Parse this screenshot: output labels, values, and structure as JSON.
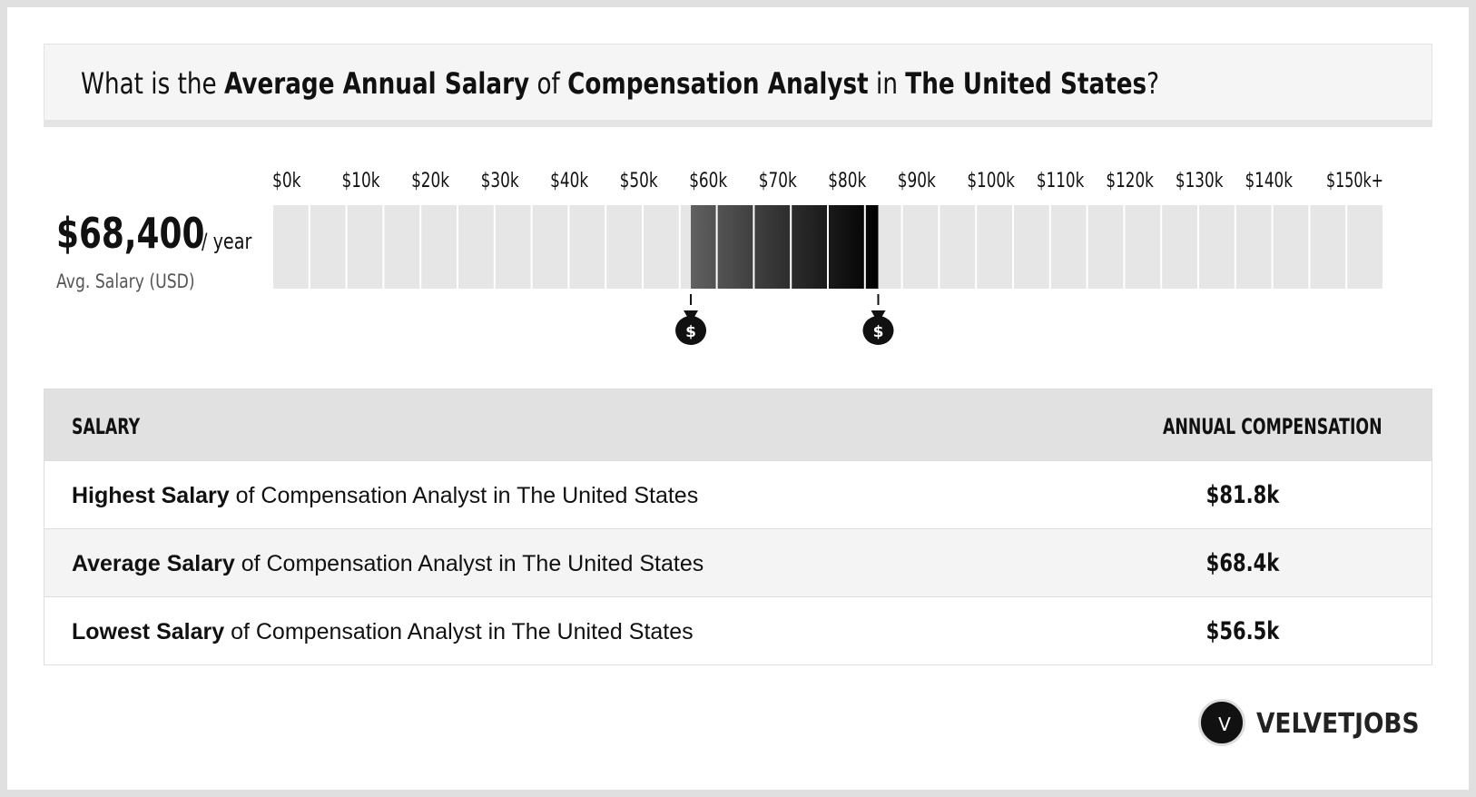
{
  "title": {
    "part1": "What is the ",
    "bold1": "Average Annual Salary",
    "part2": " of ",
    "bold2": "Compensation Analyst",
    "part3": " in ",
    "bold3": "The United States",
    "part4": "?"
  },
  "average": {
    "value": "$68,400",
    "unit": "/ year",
    "caption": "Avg. Salary (USD)"
  },
  "chart_data": {
    "type": "bar",
    "title": "",
    "tick_labels": [
      "$0k",
      "$10k",
      "$20k",
      "$30k",
      "$40k",
      "$50k",
      "$60k",
      "$70k",
      "$80k",
      "$90k",
      "$100k",
      "$110k",
      "$120k",
      "$130k",
      "$140k",
      "$150k+"
    ],
    "segment_step_k": 5,
    "segment_count": 30,
    "range_k": [
      0,
      150
    ],
    "highlight_range_k": [
      56.5,
      81.8
    ],
    "markers_k": [
      56.5,
      81.8
    ],
    "marker_icon": "money-bag-icon",
    "colors": {
      "empty": "#e6e6e6",
      "gradient_start": "#606060",
      "gradient_end": "#000000"
    }
  },
  "table": {
    "header_left": "SALARY",
    "header_right": "ANNUAL COMPENSATION",
    "rows": [
      {
        "bold": "Highest Salary",
        "rest": " of Compensation Analyst in The United States",
        "value": "$81.8k"
      },
      {
        "bold": "Average Salary",
        "rest": " of Compensation Analyst in The United States",
        "value": "$68.4k"
      },
      {
        "bold": "Lowest Salary",
        "rest": " of Compensation Analyst in The United States",
        "value": "$56.5k"
      }
    ]
  },
  "logo": {
    "letter": "V",
    "text": "VELVETJOBS"
  }
}
